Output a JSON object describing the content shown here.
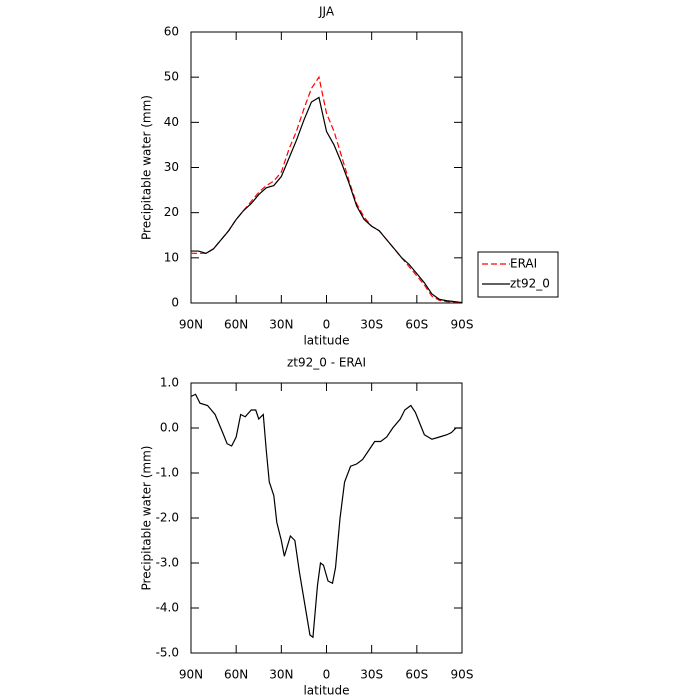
{
  "chart_data": [
    {
      "type": "line",
      "title": "JJA",
      "x_label": "latitude",
      "y_label": "Precipitable water (mm)",
      "x": [
        90,
        85,
        80,
        75,
        70,
        65,
        60,
        55,
        50,
        45,
        40,
        35,
        30,
        25,
        20,
        15,
        10,
        5,
        0,
        -5,
        -10,
        -15,
        -20,
        -25,
        -30,
        -35,
        -40,
        -45,
        -50,
        -55,
        -60,
        -65,
        -70,
        -75,
        -80,
        -85,
        -90
      ],
      "series": [
        {
          "name": "ERAI",
          "color": "#ff0000",
          "dashed": true,
          "values": [
            11,
            11,
            11,
            12,
            14,
            16,
            18.5,
            20.5,
            22.5,
            24.5,
            26,
            27,
            29,
            34,
            38,
            43,
            47.5,
            50,
            42,
            38,
            32.5,
            27,
            22,
            19,
            17,
            16,
            14,
            12,
            10,
            8,
            6,
            4,
            1.5,
            0.6,
            0.3,
            0.2,
            0.1
          ]
        },
        {
          "name": "zt92_0",
          "color": "#000000",
          "dashed": false,
          "values": [
            11.5,
            11.5,
            11,
            12,
            14,
            16,
            18.5,
            20.5,
            22,
            24,
            25.5,
            26,
            28,
            32,
            36,
            40.5,
            44.5,
            45.5,
            38,
            35,
            31,
            26.5,
            21.5,
            18.5,
            17,
            16,
            14,
            12,
            10,
            8.5,
            6.5,
            4.5,
            2,
            0.8,
            0.5,
            0.3,
            0.1
          ]
        }
      ],
      "xlim": [
        90,
        -90
      ],
      "xticks": [
        {
          "value": 90,
          "label": "90N"
        },
        {
          "value": 60,
          "label": "60N"
        },
        {
          "value": 30,
          "label": "30N"
        },
        0,
        {
          "value": -30,
          "label": "30S"
        },
        {
          "value": -60,
          "label": "60S"
        },
        {
          "value": -90,
          "label": "90S"
        }
      ],
      "ylim": [
        0,
        60
      ],
      "yticks": [
        0,
        10,
        20,
        30,
        40,
        50,
        60
      ],
      "legend": "right"
    },
    {
      "type": "line",
      "title": "zt92_0 - ERAI",
      "x_label": "latitude",
      "y_label": "Precipitable water (mm)",
      "x": [
        90,
        87,
        84,
        79,
        74,
        69,
        66,
        63,
        60,
        57,
        54,
        50,
        47,
        45,
        42,
        40,
        38,
        35,
        33,
        30,
        28,
        24,
        21,
        18,
        14,
        11,
        9,
        6,
        4,
        2,
        -1,
        -4,
        -6,
        -9,
        -12,
        -16,
        -20,
        -24,
        -28,
        -32,
        -36,
        -40,
        -44,
        -49,
        -52,
        -56,
        -59,
        -62,
        -65,
        -70,
        -75,
        -80,
        -83,
        -86,
        -90
      ],
      "series": [
        {
          "color": "#000000",
          "dashed": false,
          "values": [
            0.7,
            0.75,
            0.55,
            0.5,
            0.3,
            -0.1,
            -0.35,
            -0.4,
            -0.2,
            0.3,
            0.25,
            0.4,
            0.4,
            0.2,
            0.3,
            -0.5,
            -1.2,
            -1.5,
            -2.1,
            -2.5,
            -2.85,
            -2.4,
            -2.5,
            -3.2,
            -4.0,
            -4.6,
            -4.65,
            -3.5,
            -3.0,
            -3.05,
            -3.4,
            -3.45,
            -3.1,
            -2.0,
            -1.2,
            -0.85,
            -0.8,
            -0.7,
            -0.5,
            -0.3,
            -0.3,
            -0.2,
            0.0,
            0.2,
            0.4,
            0.5,
            0.35,
            0.1,
            -0.15,
            -0.25,
            -0.2,
            -0.15,
            -0.1,
            0.0,
            0.0
          ]
        }
      ],
      "xlim": [
        90,
        -90
      ],
      "xticks": [
        {
          "value": 90,
          "label": "90N"
        },
        {
          "value": 60,
          "label": "60N"
        },
        {
          "value": 30,
          "label": "30N"
        },
        0,
        {
          "value": -30,
          "label": "30S"
        },
        {
          "value": -60,
          "label": "60S"
        },
        {
          "value": -90,
          "label": "90S"
        }
      ],
      "ylim": [
        -5,
        1
      ],
      "yticks": [
        {
          "value": 1,
          "label": "1.0"
        },
        {
          "value": 0,
          "label": "0.0"
        },
        {
          "value": -1,
          "label": "-1.0"
        },
        {
          "value": -2,
          "label": "-2.0"
        },
        {
          "value": -3,
          "label": "-3.0"
        },
        {
          "value": -4,
          "label": "-4.0"
        },
        {
          "value": -5,
          "label": "-5.0"
        }
      ]
    }
  ]
}
